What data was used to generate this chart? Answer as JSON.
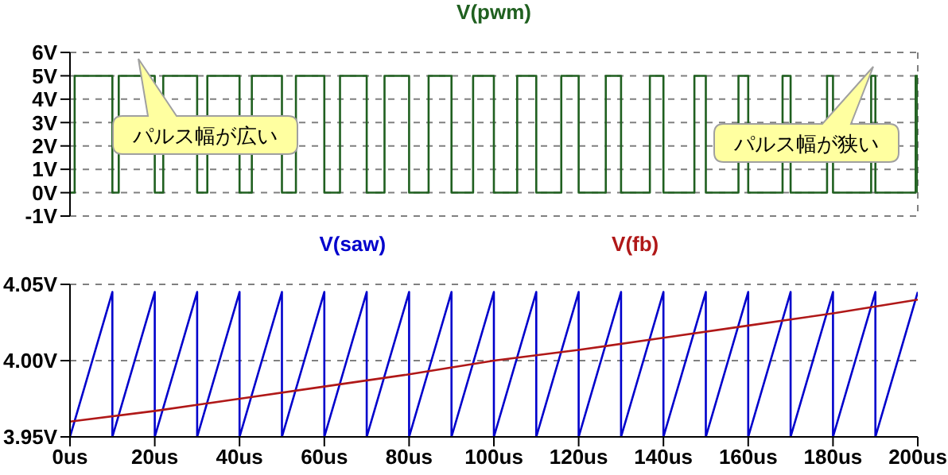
{
  "chart_data": [
    {
      "type": "line",
      "xlim": [
        0,
        200
      ],
      "xticks": [
        {
          "value": 0,
          "label": null
        },
        {
          "value": 20,
          "label": null
        },
        {
          "value": 40,
          "label": null
        },
        {
          "value": 60,
          "label": null
        },
        {
          "value": 80,
          "label": null
        },
        {
          "value": 100,
          "label": null
        },
        {
          "value": 120,
          "label": null
        },
        {
          "value": 140,
          "label": null
        },
        {
          "value": 160,
          "label": null
        },
        {
          "value": 180,
          "label": null
        },
        {
          "value": 200,
          "label": null
        }
      ],
      "ylim": [
        -1,
        6
      ],
      "yticks": [
        {
          "value": -1,
          "label": "-1V"
        },
        {
          "value": 0,
          "label": "0V"
        },
        {
          "value": 1,
          "label": "1V"
        },
        {
          "value": 2,
          "label": "2V"
        },
        {
          "value": 3,
          "label": "3V"
        },
        {
          "value": 4,
          "label": "4V"
        },
        {
          "value": 5,
          "label": "5V"
        },
        {
          "value": 6,
          "label": "6V"
        }
      ],
      "tick_labels": "y",
      "grid": true,
      "legend": "top",
      "line_style": "solid",
      "series": [
        {
          "name": "V(pwm)",
          "color": "#206020",
          "x": [
            0,
            1.1,
            1.1,
            10,
            10,
            11.5,
            11.5,
            20,
            20,
            22,
            22,
            30,
            30,
            32.4,
            32.4,
            40,
            40,
            42.9,
            42.9,
            50,
            50,
            53.3,
            53.3,
            60,
            60,
            63.7,
            63.7,
            70,
            70,
            74.2,
            74.2,
            80,
            80,
            84.6,
            84.6,
            90,
            90,
            95.1,
            95.1,
            100,
            100,
            105.5,
            105.5,
            110,
            110,
            115.9,
            115.9,
            120,
            120,
            126.4,
            126.4,
            130,
            130,
            136.8,
            136.8,
            140,
            140,
            147.3,
            147.3,
            150,
            150,
            157.7,
            157.7,
            160,
            160,
            168.1,
            168.1,
            170,
            170,
            178.6,
            178.6,
            180,
            180,
            189,
            189,
            190,
            190,
            199.5,
            199.5,
            200,
            200
          ],
          "values": [
            0,
            0,
            5,
            5,
            0,
            0,
            5,
            5,
            0,
            0,
            5,
            5,
            0,
            0,
            5,
            5,
            0,
            0,
            5,
            5,
            0,
            0,
            5,
            5,
            0,
            0,
            5,
            5,
            0,
            0,
            5,
            5,
            0,
            0,
            5,
            5,
            0,
            0,
            5,
            5,
            0,
            0,
            5,
            5,
            0,
            0,
            5,
            5,
            0,
            0,
            5,
            5,
            0,
            0,
            5,
            5,
            0,
            0,
            5,
            5,
            0,
            0,
            5,
            5,
            0,
            0,
            5,
            5,
            0,
            0,
            5,
            5,
            0,
            0,
            5,
            5,
            0,
            0,
            5,
            5,
            0
          ]
        }
      ],
      "annotations": [
        "パルス幅が広い",
        "パルス幅が狭い"
      ]
    },
    {
      "type": "line",
      "xlim": [
        0,
        200
      ],
      "xticks": [
        {
          "value": 0,
          "label": "0us"
        },
        {
          "value": 20,
          "label": "20us"
        },
        {
          "value": 40,
          "label": "40us"
        },
        {
          "value": 60,
          "label": "60us"
        },
        {
          "value": 80,
          "label": "80us"
        },
        {
          "value": 100,
          "label": "100us"
        },
        {
          "value": 120,
          "label": "120us"
        },
        {
          "value": 140,
          "label": "140us"
        },
        {
          "value": 160,
          "label": "160us"
        },
        {
          "value": 180,
          "label": "180us"
        },
        {
          "value": 200,
          "label": "200us"
        }
      ],
      "ylim": [
        3.95,
        4.05
      ],
      "yticks": [
        {
          "value": 3.95,
          "label": "3.95V"
        },
        {
          "value": 4.0,
          "label": "4.00V"
        },
        {
          "value": 4.05,
          "label": "4.05V"
        }
      ],
      "grid": "y",
      "legend": "top",
      "line_style": "solid",
      "series": [
        {
          "name": "V(saw)",
          "color": "#0000cc",
          "x": [
            0,
            10,
            10,
            20,
            20,
            30,
            30,
            40,
            40,
            50,
            50,
            60,
            60,
            70,
            70,
            80,
            80,
            90,
            90,
            100,
            100,
            110,
            110,
            120,
            120,
            130,
            130,
            140,
            140,
            150,
            150,
            160,
            160,
            170,
            170,
            180,
            180,
            190,
            190,
            200
          ],
          "values": [
            3.95,
            4.045,
            3.95,
            4.045,
            3.95,
            4.045,
            3.95,
            4.045,
            3.95,
            4.045,
            3.95,
            4.045,
            3.95,
            4.045,
            3.95,
            4.045,
            3.95,
            4.045,
            3.95,
            4.045,
            3.95,
            4.045,
            3.95,
            4.045,
            3.95,
            4.045,
            3.95,
            4.045,
            3.95,
            4.045,
            3.95,
            4.045,
            3.95,
            4.045,
            3.95,
            4.045,
            3.95,
            4.045,
            3.95,
            4.045
          ]
        },
        {
          "name": "V(fb)",
          "color": "#b01818",
          "x": [
            0,
            20,
            40,
            60,
            80,
            100,
            120,
            140,
            160,
            180,
            200
          ],
          "values": [
            3.96,
            3.967,
            3.975,
            3.983,
            3.991,
            4.0,
            4.007,
            4.015,
            4.023,
            4.031,
            4.04
          ]
        }
      ]
    }
  ]
}
